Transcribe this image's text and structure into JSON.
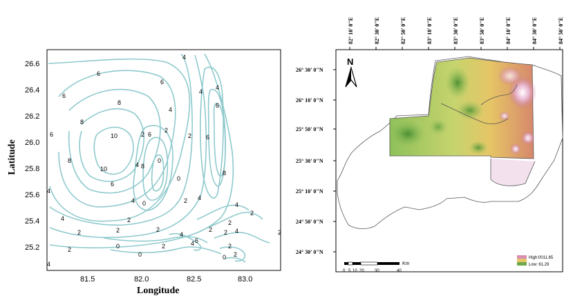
{
  "left_map": {
    "xlabel": "Longitude",
    "ylabel": "Latitude",
    "xticks": [
      "81.5",
      "82.0",
      "82.5",
      "83.0"
    ],
    "yticks": [
      "26.6",
      "26.4",
      "26.2",
      "26.0",
      "25.8",
      "25.6",
      "25.4",
      "25.2"
    ],
    "contour_labels": [
      "4",
      "6",
      "6",
      "6",
      "8",
      "8",
      "10",
      "10",
      "8",
      "6",
      "4",
      "4",
      "2",
      "2",
      "2",
      "4",
      "2",
      "0",
      "2",
      "6",
      "8",
      "4",
      "4",
      "4",
      "6",
      "2",
      "4",
      "6",
      "8",
      "0",
      "0",
      "2",
      "2",
      "0",
      "0",
      "2",
      "2",
      "4",
      "4",
      "6",
      "2",
      "2",
      "2",
      "4",
      "6",
      "4",
      "2",
      "4",
      "4",
      "2",
      "0",
      "2",
      "2"
    ]
  },
  "right_map": {
    "north_label": "N",
    "lon_labels": [
      "82° 10' 0\"E",
      "82° 30' 0\"E",
      "82° 50' 0\"E",
      "83° 10' 0\"E",
      "83° 30' 0\"E",
      "83° 50' 0\"E",
      "84° 10' 0\"E",
      "84° 30' 0\"E",
      "84° 50' 0\"E"
    ],
    "lat_labels": [
      "26° 30' 0\"N",
      "26° 10' 0\"N",
      "25° 50' 0\"N",
      "25° 30' 0\"N",
      "25° 10' 0\"N",
      "24° 50' 0\"N",
      "24° 30' 0\"N"
    ],
    "scale_unit": "Km",
    "scale_ticks": [
      "0",
      "5",
      "10",
      "20",
      "30",
      "40"
    ],
    "legend_high": "High:0011.65",
    "legend_low": "Low: 61.29",
    "colors": {
      "high": "#d98fb0",
      "mid": "#e8c66a",
      "low": "#6fa94a"
    }
  }
}
